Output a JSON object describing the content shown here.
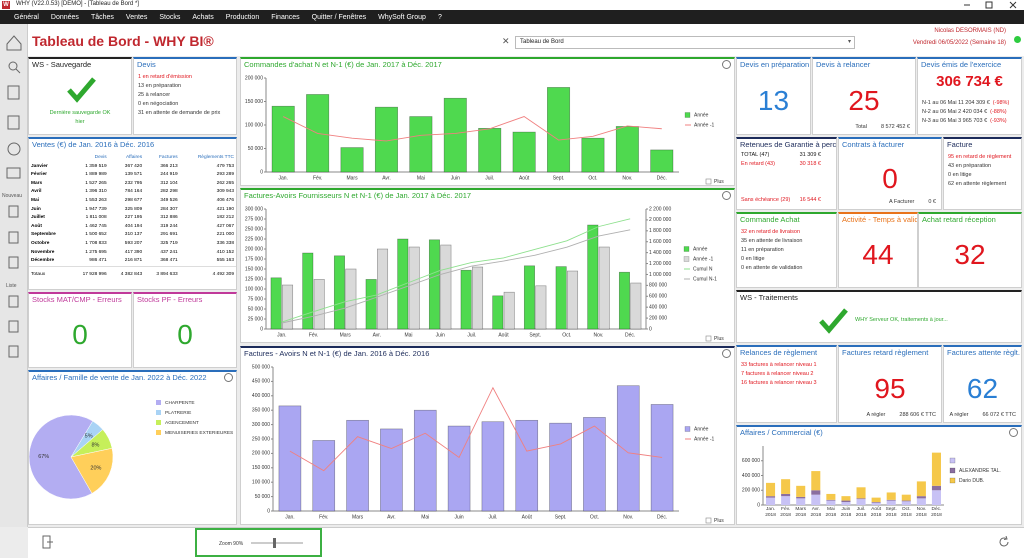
{
  "window": {
    "title": "WHY (V22.0.53) [DEMO] - [Tableau de Bord *]",
    "logo": "W"
  },
  "menu": [
    "Général",
    "Données",
    "Tâches",
    "Ventes",
    "Stocks",
    "Achats",
    "Production",
    "Finances",
    "Quitter / Fenêtres",
    "WhySoft Group",
    "?"
  ],
  "sidebar": {
    "labels": [
      "Nouveau",
      "Liste"
    ]
  },
  "header": {
    "title": "Tableau de Bord - WHY BI®",
    "selector": "Tableau de Bord",
    "user": "Nicolas DESORMAIS (ND)",
    "date": "Vendredi 06/05/2022 (Semaine 18)"
  },
  "panels": [
    {
      "title": "WS - Sauvegarde",
      "accent": "#222222",
      "check": true,
      "lines": [
        {
          "text": "Dernière sauvegarde OK",
          "color": "#2ea82e"
        },
        {
          "text": "hier",
          "color": "#2ea82e"
        }
      ]
    },
    {
      "title": "Devis",
      "accent": "#2a6ebb",
      "lines": [
        {
          "text": "1 en retard d'émission",
          "color": "#e0161e"
        },
        {
          "text": "13 en préparation",
          "color": "#333333"
        },
        {
          "text": "25 à relancer",
          "color": "#333333"
        },
        {
          "text": "0 en négociation",
          "color": "#333333"
        },
        {
          "text": "31 en attente de demande de prix",
          "color": "#333333"
        }
      ]
    },
    {
      "title": "Ventes (€) de Jan. 2016 à Déc. 2016",
      "accent": "#2a6ebb",
      "table": {
        "columns": [
          "Devis",
          "Affaires",
          "Factures",
          "Règlements TTC"
        ],
        "rows": [
          [
            "Janvier",
            "1 359 519",
            "367 420",
            "366 213",
            "479 753"
          ],
          [
            "Février",
            "1 889 989",
            "139 571",
            "244 919",
            "293 289"
          ],
          [
            "Mars",
            "1 527 265",
            "232 795",
            "312 104",
            "262 265"
          ],
          [
            "Avril",
            "1 396 310",
            "784 164",
            "282 298",
            "309 943"
          ],
          [
            "Mai",
            "1 553 263",
            "298 677",
            "349 526",
            "406 476"
          ],
          [
            "Juin",
            "1 947 739",
            "325 809",
            "284 307",
            "421 190"
          ],
          [
            "Juillet",
            "1 811 008",
            "227 195",
            "312 886",
            "182 212"
          ],
          [
            "Août",
            "1 462 745",
            "404 194",
            "319 244",
            "427 067"
          ],
          [
            "Septembre",
            "1 500 652",
            "310 137",
            "291 691",
            "221 000"
          ],
          [
            "Octobre",
            "1 708 833",
            "593 207",
            "325 719",
            "336 338"
          ],
          [
            "Novembre",
            "1 275 695",
            "417 390",
            "437 241",
            "410 152"
          ],
          [
            "Décembre",
            "986 471",
            "216 871",
            "368 471",
            "555 163"
          ]
        ],
        "totals": [
          "Totaux",
          "17 928 996",
          "4 382 843",
          "3 894 633",
          "4 492 309"
        ]
      }
    },
    {
      "title": "Stocks MAT/CMP - Erreurs",
      "accent": "#c0399a",
      "value": 0,
      "value_color": "#2ea82e"
    },
    {
      "title": "Stocks PF - Erreurs",
      "accent": "#c0399a",
      "value": 0,
      "value_color": "#2ea82e"
    },
    {
      "title": "Devis en préparation",
      "accent": "#2a6ebb",
      "value": 13,
      "value_color": "#2a7fd4"
    },
    {
      "title": "Devis à relancer",
      "accent": "#2a6ebb",
      "value": 25,
      "value_color": "#e0161e",
      "note": [
        "Total",
        "8 572 452 €"
      ]
    },
    {
      "title": "Devis émis de l'exercice",
      "accent": "#2a6ebb",
      "value": "306 734 €",
      "value_color": "#e0161e",
      "lines": [
        {
          "text": "N-1 au 06 Mai 11 204 309 €",
          "pct": "(-98%)",
          "color": "#333333"
        },
        {
          "text": "N-2 au 06 Mai 2 420 034 €",
          "pct": "(-88%)",
          "color": "#333333"
        },
        {
          "text": "N-3 au 06 Mai 3 965 703 €",
          "pct": "(-93%)",
          "color": "#333333"
        }
      ]
    },
    {
      "title": "Retenues de Garantie à percevoir",
      "accent": "#1c2b5a",
      "rows": [
        {
          "label": "TOTAL (47)",
          "amount": "31 309 €",
          "color": "#111111"
        },
        {
          "label": "En retard (43)",
          "amount": "30 318 €",
          "color": "#e0161e"
        },
        {
          "label": "Sans échéance (29)",
          "amount": "16 544 €",
          "color": "#e0161e"
        }
      ]
    },
    {
      "title": "Contrats à facturer",
      "accent": "#2a6ebb",
      "value": 0,
      "value_color": "#e0161e",
      "note": [
        "A Facturer",
        "0 €"
      ]
    },
    {
      "title": "Facture",
      "accent": "#1c2b5a",
      "lines": [
        {
          "text": "95 en retard de règlement",
          "color": "#e0161e"
        },
        {
          "text": "43 en préparation",
          "color": "#333333"
        },
        {
          "text": "0 en litige",
          "color": "#333333"
        },
        {
          "text": "62 en attente règlement",
          "color": "#333333"
        }
      ]
    },
    {
      "title": "Commande Achat",
      "accent": "#2ea82e",
      "lines": [
        {
          "text": "32 en retard de livraison",
          "color": "#e0161e"
        },
        {
          "text": "35 en attente de livraison",
          "color": "#333333"
        },
        {
          "text": "11 en préparation",
          "color": "#333333"
        },
        {
          "text": "0 en litige",
          "color": "#333333"
        },
        {
          "text": "0 en attente de validation",
          "color": "#333333"
        }
      ]
    },
    {
      "title": "Activité - Temps à valider",
      "accent": "#e8731a",
      "value": 44,
      "value_color": "#e0161e"
    },
    {
      "title": "Achat retard réception",
      "accent": "#2ea82e",
      "value": 32,
      "value_color": "#e0161e"
    },
    {
      "title": "WS - Traitements",
      "accent": "#222222",
      "check": true,
      "lines": [
        {
          "text": "WHY Serveur OK, traitements à jour...",
          "color": "#2ea82e"
        }
      ]
    },
    {
      "title": "Relances de règlement",
      "accent": "#2a6ebb",
      "lines": [
        {
          "text": "33 factures à relancer niveau 1",
          "color": "#e0161e"
        },
        {
          "text": "7 factures à relancer niveau 2",
          "color": "#e0161e"
        },
        {
          "text": "16 factures à relancer niveau 3",
          "color": "#e0161e"
        }
      ]
    },
    {
      "title": "Factures retard règlement",
      "accent": "#2a6ebb",
      "value": 95,
      "value_color": "#e0161e",
      "note": [
        "A régler",
        "288 606 € TTC"
      ]
    },
    {
      "title": "Factures attente règlt.",
      "accent": "#2a6ebb",
      "value": 62,
      "value_color": "#2a7fd4",
      "note": [
        "A régler",
        "66 072 € TTC"
      ]
    }
  ],
  "status": {
    "zoom": "Zoom 90%"
  },
  "chart_data": [
    {
      "type": "bar",
      "title": "Commandes d'achat N et N-1 (€) de Jan. 2017 à Déc. 2017",
      "accent": "#2ea82e",
      "categories": [
        "Jan.",
        "Fév.",
        "Mars",
        "Avr.",
        "Mai",
        "Juin",
        "Juil.",
        "Août",
        "Sept.",
        "Oct.",
        "Nov.",
        "Déc."
      ],
      "series": [
        {
          "name": "Année",
          "color": "#4fd94f",
          "type": "bar",
          "values": [
            140000,
            165000,
            52000,
            138000,
            118000,
            157000,
            93000,
            85000,
            180000,
            72000,
            97000,
            47000
          ]
        },
        {
          "name": "Année -1",
          "color": "#f08080",
          "type": "line",
          "values": [
            118000,
            82000,
            72000,
            66000,
            78000,
            82000,
            92000,
            118000,
            68000,
            76000,
            98000,
            92000
          ]
        }
      ],
      "ylim": [
        0,
        200000
      ],
      "yticks": [
        0,
        {
          "value": 50000,
          "label": "50 000"
        },
        {
          "value": 100000,
          "label": "100 000"
        },
        {
          "value": 150000,
          "label": "150 000"
        },
        {
          "value": 200000,
          "label": "200 000"
        }
      ],
      "legend": "right",
      "checkbox": "Plus"
    },
    {
      "type": "bar",
      "title": "Factures-Avoirs Fournisseurs N et N-1 (€) de Jan. 2017 à Déc. 2017",
      "accent": "#2ea82e",
      "categories": [
        "Jan.",
        "Fév.",
        "Mars",
        "Avr.",
        "Mai",
        "Juin",
        "Juil.",
        "Août",
        "Sept.",
        "Oct.",
        "Nov.",
        "Déc."
      ],
      "series": [
        {
          "name": "Année",
          "color": "#4fd94f",
          "type": "bar",
          "values": [
            128000,
            190000,
            183000,
            124000,
            225000,
            223000,
            147000,
            83000,
            158000,
            156000,
            260000,
            142000
          ]
        },
        {
          "name": "Année -1",
          "color": "#d9d9d9",
          "type": "bar",
          "values": [
            110000,
            124000,
            150000,
            200000,
            205000,
            210000,
            155000,
            92000,
            108000,
            145000,
            205000,
            115000
          ]
        },
        {
          "name": "Cumul N",
          "color": "#8ee08e",
          "type": "line",
          "axis": "y2",
          "values": [
            128000,
            318000,
            501000,
            625000,
            850000,
            1073000,
            1220000,
            1303000,
            1461000,
            1617000,
            1877000,
            2019000
          ]
        },
        {
          "name": "Cumul N-1",
          "color": "#b0b0b0",
          "type": "line",
          "axis": "y2",
          "values": [
            110000,
            234000,
            384000,
            584000,
            789000,
            999000,
            1154000,
            1246000,
            1354000,
            1499000,
            1704000,
            1819000
          ]
        }
      ],
      "ylim": [
        0,
        300000
      ],
      "yticks": [
        0,
        {
          "value": 25000,
          "label": "25 000"
        },
        {
          "value": 50000,
          "label": "50 000"
        },
        {
          "value": 75000,
          "label": "75 000"
        },
        {
          "value": 100000,
          "label": "100 000"
        },
        {
          "value": 125000,
          "label": "125 000"
        },
        {
          "value": 150000,
          "label": "150 000"
        },
        {
          "value": 175000,
          "label": "175 000"
        },
        {
          "value": 200000,
          "label": "200 000"
        },
        {
          "value": 225000,
          "label": "225 000"
        },
        {
          "value": 250000,
          "label": "250 000"
        },
        {
          "value": 275000,
          "label": "275 000"
        },
        {
          "value": 300000,
          "label": "300 000"
        }
      ],
      "y2lim": [
        0,
        2200000
      ],
      "y2ticks": [
        0,
        {
          "value": 200000,
          "label": "200 000"
        },
        {
          "value": 400000,
          "label": "400 000"
        },
        {
          "value": 600000,
          "label": "600 000"
        },
        {
          "value": 800000,
          "label": "800 000"
        },
        {
          "value": 1000000,
          "label": "1 000 000"
        },
        {
          "value": 1200000,
          "label": "1 200 000"
        },
        {
          "value": 1400000,
          "label": "1 400 000"
        },
        {
          "value": 1600000,
          "label": "1 600 000"
        },
        {
          "value": 1800000,
          "label": "1 800 000"
        },
        {
          "value": 2000000,
          "label": "2 000 000"
        },
        {
          "value": 2200000,
          "label": "2 200 000"
        }
      ],
      "legend": "right",
      "checkbox": "Plus"
    },
    {
      "type": "bar",
      "title": "Factures - Avoirs N et N-1 (€) de Jan. 2016 à Déc. 2016",
      "accent": "#1c2b5a",
      "categories": [
        "Jan.",
        "Fév.",
        "Mars",
        "Avr.",
        "Mai",
        "Juin",
        "Juil.",
        "Août",
        "Sept.",
        "Oct.",
        "Nov.",
        "Déc."
      ],
      "series": [
        {
          "name": "Année",
          "color": "#aaa6f2",
          "type": "bar",
          "values": [
            365000,
            245000,
            315000,
            285000,
            350000,
            295000,
            310000,
            315000,
            305000,
            325000,
            435000,
            370000
          ]
        },
        {
          "name": "Année -1",
          "color": "#f08080",
          "type": "line",
          "values": [
            208000,
            140000,
            258000,
            217000,
            270000,
            186000,
            428000,
            208000,
            233000,
            295000,
            202000,
            186000
          ]
        }
      ],
      "ylim": [
        0,
        500000
      ],
      "yticks": [
        0,
        {
          "value": 50000,
          "label": "50 000"
        },
        {
          "value": 100000,
          "label": "100 000"
        },
        {
          "value": 150000,
          "label": "150 000"
        },
        {
          "value": 200000,
          "label": "200 000"
        },
        {
          "value": 250000,
          "label": "250 000"
        },
        {
          "value": 300000,
          "label": "300 000"
        },
        {
          "value": 350000,
          "label": "350 000"
        },
        {
          "value": 400000,
          "label": "400 000"
        },
        {
          "value": 450000,
          "label": "450 000"
        },
        {
          "value": 500000,
          "label": "500 000"
        }
      ],
      "legend": "right",
      "checkbox": "Plus"
    },
    {
      "type": "pie",
      "title": "Affaires / Famille de vente de Jan. 2022 à Déc. 2022",
      "accent": "#2a6ebb",
      "categories": [
        "CHARPENTE",
        "PLATRERIE",
        "AGENCEMENT",
        "MENUISERIES EXTERIEURES"
      ],
      "values": [
        67,
        5,
        8,
        20
      ],
      "value_labels": [
        "67%",
        "5%",
        "8%",
        "20%"
      ],
      "colors": [
        "#b3adf2",
        "#a9d3f5",
        "#c6ef5a",
        "#ffcf5a"
      ]
    },
    {
      "type": "stacked_bar",
      "title": "Affaires / Commercial (€)",
      "accent": "#2a6ebb",
      "categories": [
        "Jan. 2018",
        "Fév. 2018",
        "Mars 2018",
        "Avr. 2018",
        "Mai 2018",
        "Juin 2018",
        "Juil. 2018",
        "Août 2018",
        "Sept. 2018",
        "Oct. 2018",
        "Nov. 2018",
        "Déc. 2018"
      ],
      "series": [
        {
          "color": "#c8c2f5",
          "values": [
            100000,
            120000,
            90000,
            140000,
            60000,
            40000,
            80000,
            30000,
            60000,
            50000,
            90000,
            200000
          ]
        },
        {
          "name": "ALEXANDRE TAL.",
          "color": "#8a6ea0",
          "values": [
            20000,
            30000,
            20000,
            60000,
            10000,
            20000,
            10000,
            10000,
            10000,
            10000,
            30000,
            60000
          ]
        },
        {
          "name": "Dario DUB.",
          "color": "#f5c84a",
          "values": [
            180000,
            200000,
            150000,
            260000,
            80000,
            60000,
            150000,
            60000,
            100000,
            80000,
            200000,
            450000
          ]
        }
      ],
      "ylim": [
        0,
        800000
      ],
      "yticks": [
        0,
        {
          "value": 200000,
          "label": "200 000"
        },
        {
          "value": 400000,
          "label": "400 000"
        },
        {
          "value": 600000,
          "label": "600 000"
        }
      ],
      "legend": "right"
    }
  ]
}
